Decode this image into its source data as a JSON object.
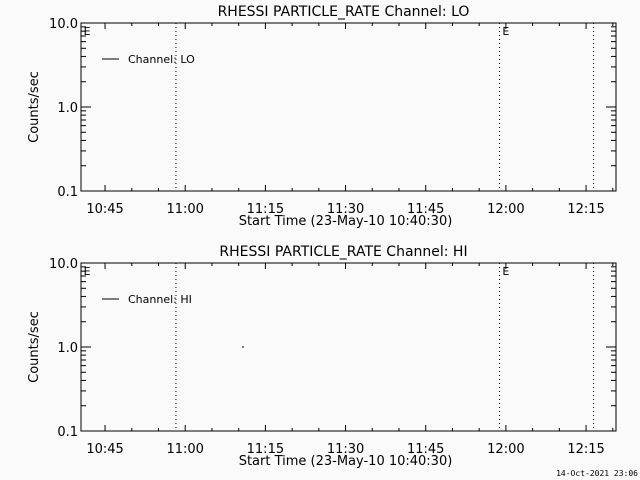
{
  "timestamp": "14-Oct-2021 23:06",
  "chart_data": [
    {
      "type": "line",
      "title": "RHESSI PARTICLE_RATE Channel: LO",
      "xlabel": "Start Time (23-May-10 10:40:30)",
      "ylabel": "Counts/sec",
      "xlim": [
        "10:40:30",
        "12:20:36"
      ],
      "ylim": [
        0.1,
        10.0
      ],
      "yscale": "log",
      "xticks": [
        "10:45",
        "11:00",
        "11:15",
        "11:30",
        "11:45",
        "12:00",
        "12:15"
      ],
      "yticks": [
        "0.1",
        "1.0",
        "10.0"
      ],
      "legend": {
        "entries": [
          "Channel: LO"
        ],
        "position": "top-left"
      },
      "vlines": [
        "10:58:16",
        "11:58:48",
        "12:16:24"
      ],
      "markers": [
        {
          "label": "E",
          "time": "10:41:00"
        },
        {
          "label": "E",
          "time": "11:59:20"
        }
      ],
      "points": []
    },
    {
      "type": "line",
      "title": "RHESSI PARTICLE_RATE Channel: HI",
      "xlabel": "Start Time (23-May-10 10:40:30)",
      "ylabel": "Counts/sec",
      "xlim": [
        "10:40:30",
        "12:20:36"
      ],
      "ylim": [
        0.1,
        10.0
      ],
      "yscale": "log",
      "xticks": [
        "10:45",
        "11:00",
        "11:15",
        "11:30",
        "11:45",
        "12:00",
        "12:15"
      ],
      "yticks": [
        "0.1",
        "1.0",
        "10.0"
      ],
      "legend": {
        "entries": [
          "Channel: HI"
        ],
        "position": "top-left"
      },
      "vlines": [
        "10:58:16",
        "11:58:48",
        "12:16:24"
      ],
      "markers": [
        {
          "label": "E",
          "time": "10:41:00"
        },
        {
          "label": "E",
          "time": "11:59:20"
        }
      ],
      "points": [
        {
          "time": "11:10:48",
          "value": 1.0
        }
      ]
    }
  ]
}
